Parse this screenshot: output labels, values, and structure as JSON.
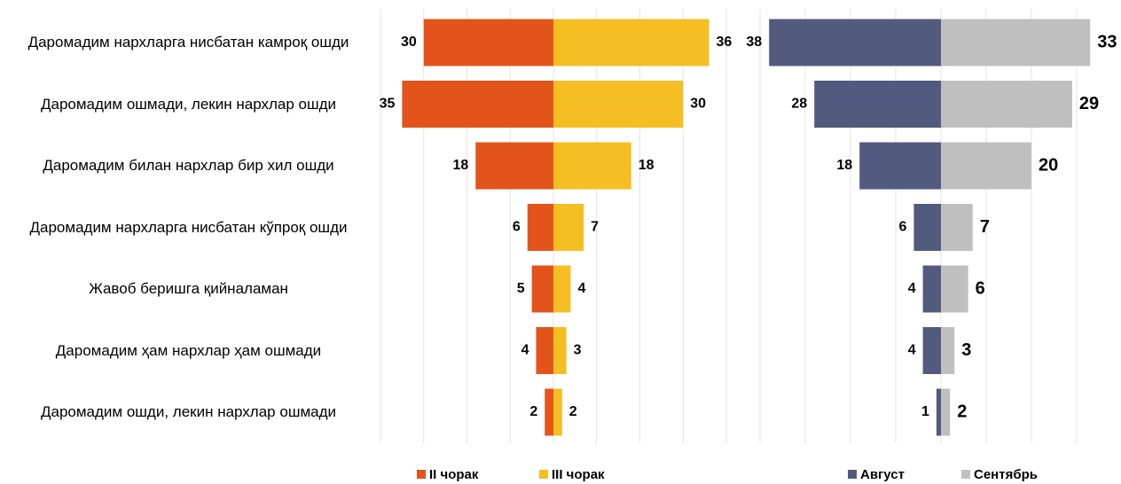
{
  "chart_data": [
    {
      "type": "bar",
      "categories": [
        "Даромадим нархларга нисбатан камроқ ошди",
        "Даромадим ошмади, лекин нархлар ошди",
        "Даромадим билан нархлар бир хил ошди",
        "Даромадим нархларга нисбатан кўпроқ ошди",
        "Жавоб беришга қийналаман",
        "Даромадим ҳам нархлар ҳам ошмади",
        "Даромадим ошди, лекин нархлар ошмади"
      ],
      "series": [
        {
          "name": "II чорак",
          "color": "#e3541b",
          "values": [
            30,
            35,
            18,
            6,
            5,
            4,
            2
          ]
        },
        {
          "name": "III чорак",
          "color": "#f5be23",
          "values": [
            36,
            30,
            18,
            7,
            4,
            3,
            2
          ]
        }
      ],
      "xlim": [
        0,
        40
      ],
      "xticks": [
        0,
        10,
        20,
        30,
        40
      ],
      "grid": true
    },
    {
      "type": "bar",
      "series": [
        {
          "name": "Август",
          "color": "#525a7e",
          "values": [
            38,
            28,
            18,
            6,
            4,
            4,
            1
          ]
        },
        {
          "name": "Сентябрь",
          "color": "#bfbfbf",
          "values": [
            33,
            29,
            20,
            7,
            6,
            3,
            2
          ]
        }
      ],
      "xlim": [
        0,
        40
      ],
      "xticks": [
        0,
        10,
        20,
        30,
        40
      ],
      "grid": true
    }
  ]
}
